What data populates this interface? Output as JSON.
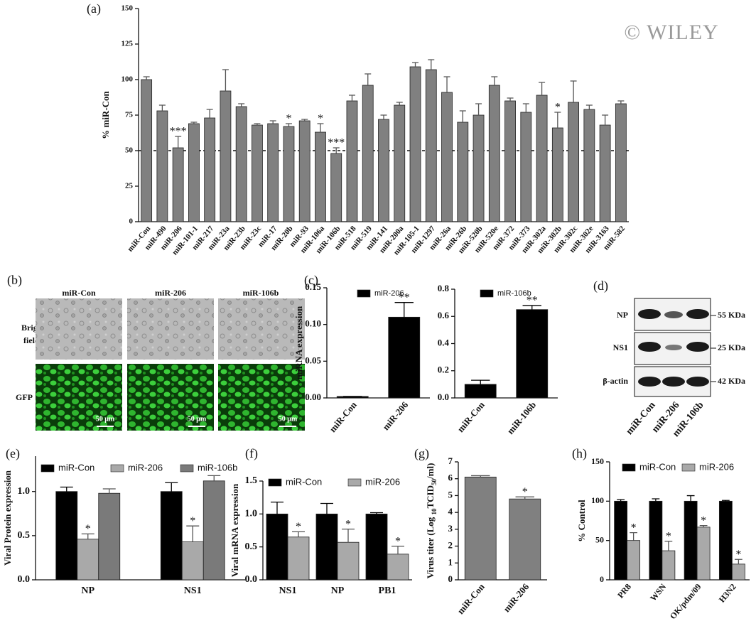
{
  "watermark": "© WILEY",
  "panel_b": {
    "panel": "(b)",
    "columns": [
      "miR-Con",
      "miR-206",
      "miR-106b"
    ],
    "rows": [
      "Bright",
      "field",
      "GFP"
    ],
    "scale_bar": "50 μm"
  },
  "panel_d": {
    "panel": "(d)",
    "proteins": [
      "NP",
      "NS1",
      "β-actin"
    ],
    "sizes": [
      "55 KDa",
      "25 KDa",
      "42 KDa"
    ],
    "lanes": [
      "miR-Con",
      "miR-206",
      "miR-106b"
    ]
  },
  "chart_data": [
    {
      "type": "bar",
      "panel": "(a)",
      "ylabel": "% miR-Con",
      "color": "#808080",
      "categories": [
        "miR-Con",
        "miR-490",
        "miR-206",
        "miR-101-1",
        "miR-217",
        "miR-23a",
        "miR-23b",
        "miR-23c",
        "miR-17",
        "miR-20b",
        "miR-93",
        "miR-106a",
        "miR-106b",
        "miR-518",
        "miR-519",
        "miR-141",
        "miR-200a",
        "miR-105-1",
        "miR-1297",
        "miR-26a",
        "miR-26b",
        "miR-520b",
        "miR-520e",
        "miR-372",
        "miR-373",
        "miR-302a",
        "miR-302b",
        "miR-302c",
        "miR-302e",
        "miR-3163",
        "miR-582"
      ],
      "values": [
        100,
        78,
        52,
        69,
        73,
        92,
        81,
        68,
        69,
        67,
        71,
        63,
        48,
        85,
        96,
        72,
        82,
        109,
        107,
        91,
        70,
        75,
        96,
        85,
        77,
        89,
        66,
        84,
        79,
        68,
        83
      ],
      "errors": [
        2,
        4,
        8,
        1,
        6,
        15,
        2,
        1,
        2,
        2,
        1,
        6,
        4,
        4,
        8,
        3,
        2,
        3,
        7,
        11,
        8,
        8,
        6,
        2,
        6,
        9,
        11,
        15,
        3,
        7,
        2
      ],
      "significance": [
        null,
        null,
        "***",
        null,
        null,
        null,
        null,
        null,
        null,
        "*",
        null,
        "*",
        "***",
        null,
        null,
        null,
        null,
        null,
        null,
        null,
        null,
        null,
        null,
        null,
        null,
        null,
        "*",
        null,
        null,
        null,
        null
      ],
      "reference_line": 50,
      "ylim": [
        0,
        150
      ],
      "yticks": [
        0,
        25,
        50,
        75,
        100,
        125,
        150
      ]
    },
    {
      "type": "bar",
      "panel": "(c)",
      "ylabel": "miRNA expression",
      "categories": [
        "miR-Con",
        "miR-206"
      ],
      "series": [
        {
          "name": "miR-206",
          "color": "#000000",
          "values": [
            0.002,
            0.11
          ],
          "errors": [
            0,
            0.02
          ],
          "significance": [
            null,
            "**"
          ]
        }
      ],
      "legend": "upper left",
      "ylim": [
        0,
        0.15
      ],
      "yticks": [
        {
          "value": 0,
          "label": "0.00"
        },
        0.05,
        {
          "value": 0.1,
          "label": "0.10"
        },
        0.15
      ]
    },
    {
      "type": "bar",
      "categories": [
        "miR-Con",
        "miR-106b"
      ],
      "series": [
        {
          "name": "miR-106b",
          "color": "#000000",
          "values": [
            0.1,
            0.65
          ],
          "errors": [
            0.03,
            0.03
          ],
          "significance": [
            null,
            "**"
          ]
        }
      ],
      "legend": "upper left",
      "ylim": [
        0,
        0.8
      ],
      "yticks": [
        {
          "value": 0,
          "label": "0.0"
        },
        0.2,
        0.4,
        0.6,
        0.8
      ]
    },
    {
      "type": "bar",
      "panel": "(e)",
      "ylabel": "Viral Protein expression",
      "categories": [
        "NP",
        "NS1"
      ],
      "series": [
        {
          "name": "miR-Con",
          "color": "#000000",
          "values": [
            1.0,
            1.0
          ],
          "errors": [
            0.05,
            0.1
          ],
          "significance": [
            null,
            null
          ]
        },
        {
          "name": "miR-206",
          "color": "#a9a9a9",
          "values": [
            0.46,
            0.43
          ],
          "errors": [
            0.06,
            0.18
          ],
          "significance": [
            "*",
            "*"
          ]
        },
        {
          "name": "miR-106b",
          "color": "#7a7a7a",
          "values": [
            0.98,
            1.12
          ],
          "errors": [
            0.05,
            0.06
          ],
          "significance": [
            null,
            null
          ]
        }
      ],
      "legend": "top",
      "ylim": [
        0,
        1.4
      ],
      "yticks": [
        {
          "value": 0,
          "label": "0.0"
        },
        0.5,
        {
          "value": 1,
          "label": "1.0"
        }
      ]
    },
    {
      "type": "bar",
      "panel": "(f)",
      "ylabel": "Viral mRNA expression",
      "categories": [
        "NS1",
        "NP",
        "PB1"
      ],
      "series": [
        {
          "name": "miR-Con",
          "color": "#000000",
          "values": [
            1.0,
            1.0,
            1.0
          ],
          "errors": [
            0.18,
            0.16,
            0.02
          ],
          "significance": [
            null,
            null,
            null
          ]
        },
        {
          "name": "miR-206",
          "color": "#a9a9a9",
          "values": [
            0.65,
            0.57,
            0.39
          ],
          "errors": [
            0.08,
            0.2,
            0.12
          ],
          "significance": [
            "*",
            "*",
            "*"
          ]
        }
      ],
      "legend": "top",
      "ylim": [
        0,
        1.5
      ],
      "yticks": [
        {
          "value": 0,
          "label": "0.0"
        },
        0.5,
        {
          "value": 1,
          "label": "1.0"
        },
        1.5
      ]
    },
    {
      "type": "bar",
      "panel": "(g)",
      "ylabel": [
        "Virus titer (Log ",
        "10",
        "TCID",
        "50",
        "/ml)"
      ],
      "color": "#808080",
      "categories": [
        "miR-Con",
        "miR-206"
      ],
      "values": [
        6.1,
        4.8
      ],
      "errors": [
        0.08,
        0.12
      ],
      "significance": [
        null,
        "*"
      ],
      "ylim": [
        0,
        7
      ],
      "yticks": [
        0,
        1,
        2,
        3,
        4,
        5,
        6,
        7
      ]
    },
    {
      "type": "bar",
      "panel": "(h)",
      "ylabel": "% Control",
      "categories": [
        "PR8",
        "WSN",
        "OK/pdm/09",
        "H3N2"
      ],
      "series": [
        {
          "name": "miR-Con",
          "color": "#000000",
          "values": [
            100,
            100,
            100,
            100
          ],
          "errors": [
            2,
            3,
            7,
            1
          ],
          "significance": [
            null,
            null,
            null,
            null
          ]
        },
        {
          "name": "miR-206",
          "color": "#a9a9a9",
          "values": [
            50,
            37,
            67,
            20
          ],
          "errors": [
            10,
            12,
            2,
            6
          ],
          "significance": [
            "*",
            "*",
            "*",
            "*"
          ]
        }
      ],
      "legend": "top",
      "ylim": [
        0,
        150
      ],
      "yticks": [
        0,
        50,
        100,
        150
      ]
    }
  ]
}
